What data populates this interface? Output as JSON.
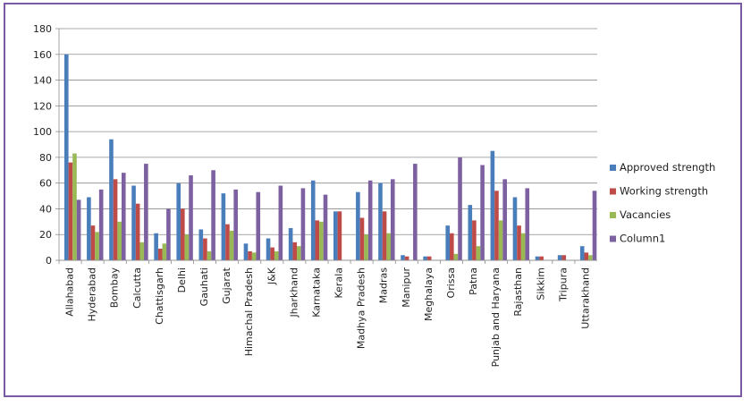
{
  "chart_data": {
    "type": "bar",
    "title": "",
    "xlabel": "",
    "ylabel": "",
    "ylim": [
      0,
      180
    ],
    "yticks": [
      0,
      20,
      40,
      60,
      80,
      100,
      120,
      140,
      160,
      180
    ],
    "grid": "horizontal",
    "legend": "right",
    "categories": [
      "Allahabad",
      "Hyderabad",
      "Bombay",
      "Calcutta",
      "Chattisgarh",
      "Delhi",
      "Gauhati",
      "Gujarat",
      "Himachal Pradesh",
      "J&K",
      "Jharkhand",
      "Karnataka",
      "Kerala",
      "Madhya Pradesh",
      "Madras",
      "Manipur",
      "Meghalaya",
      "Orissa",
      "Patna",
      "Punjab and Haryana",
      "Rajasthan",
      "Sikkim",
      "Tripura",
      "Uttarakhand"
    ],
    "series": [
      {
        "name": "Approved strength",
        "color": "#4a7ebb",
        "values": [
          160,
          49,
          94,
          58,
          21,
          60,
          24,
          52,
          13,
          17,
          25,
          62,
          38,
          53,
          60,
          4,
          3,
          27,
          43,
          85,
          49,
          3,
          4,
          11
        ]
      },
      {
        "name": "Working strength",
        "color": "#be4b48",
        "values": [
          76,
          27,
          63,
          44,
          9,
          40,
          17,
          28,
          7,
          10,
          14,
          31,
          38,
          33,
          38,
          3,
          3,
          21,
          31,
          54,
          27,
          3,
          4,
          6
        ]
      },
      {
        "name": "Vacancies",
        "color": "#98b954",
        "values": [
          83,
          22,
          30,
          14,
          13,
          20,
          7,
          23,
          6,
          7,
          11,
          30,
          0,
          20,
          21,
          0,
          0,
          5,
          11,
          31,
          21,
          0,
          0,
          4
        ]
      },
      {
        "name": "Column1",
        "color": "#7d60a0",
        "values": [
          47,
          55,
          68,
          75,
          40,
          66,
          70,
          55,
          53,
          58,
          56,
          51,
          0,
          62,
          63,
          75,
          0,
          80,
          74,
          63,
          56,
          0,
          0,
          54
        ]
      }
    ]
  }
}
